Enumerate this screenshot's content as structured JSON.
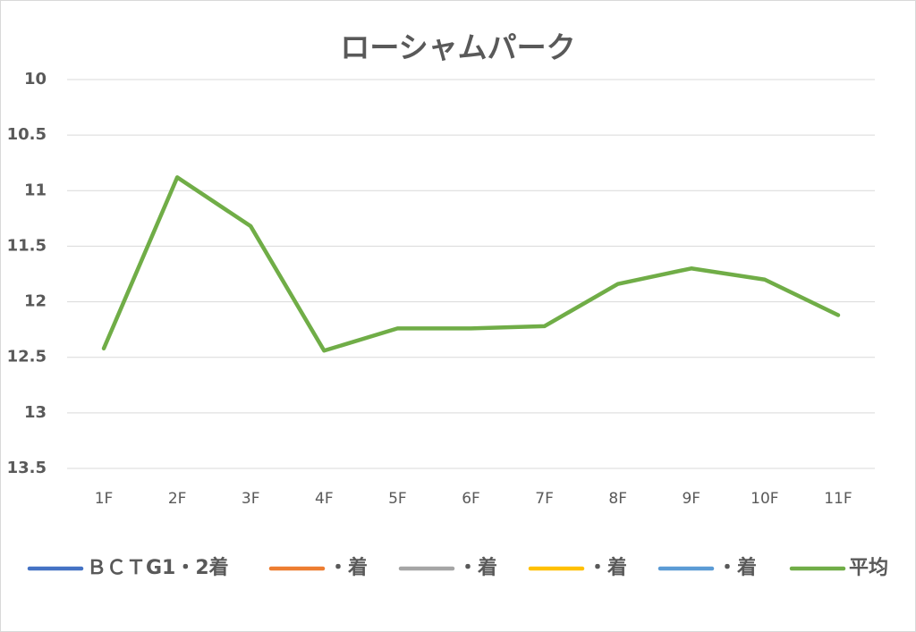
{
  "chart_data": {
    "type": "line",
    "title": "ローシャムパーク",
    "categories": [
      "1F",
      "2F",
      "3F",
      "4F",
      "5F",
      "6F",
      "7F",
      "8F",
      "9F",
      "10F",
      "11F"
    ],
    "series": [
      {
        "name": "ＢＣＴG1・2着",
        "color": "#4472c4",
        "values": [
          null,
          null,
          null,
          null,
          null,
          null,
          null,
          null,
          null,
          null,
          null
        ]
      },
      {
        "name": "・着",
        "color": "#ed7d31",
        "values": [
          null,
          null,
          null,
          null,
          null,
          null,
          null,
          null,
          null,
          null,
          null
        ]
      },
      {
        "name": "・着",
        "color": "#a5a5a5",
        "values": [
          null,
          null,
          null,
          null,
          null,
          null,
          null,
          null,
          null,
          null,
          null
        ]
      },
      {
        "name": "・着",
        "color": "#ffc000",
        "values": [
          null,
          null,
          null,
          null,
          null,
          null,
          null,
          null,
          null,
          null,
          null
        ]
      },
      {
        "name": "・着",
        "color": "#5b9bd5",
        "values": [
          null,
          null,
          null,
          null,
          null,
          null,
          null,
          null,
          null,
          null,
          null
        ]
      },
      {
        "name": "平均",
        "color": "#70ad47",
        "values": [
          12.42,
          10.88,
          11.32,
          12.44,
          12.24,
          12.24,
          12.22,
          11.84,
          11.7,
          11.8,
          12.12
        ]
      }
    ],
    "ylim": [
      10,
      13.5
    ],
    "yreverse": true,
    "yticks": [
      10,
      10.5,
      11,
      11.5,
      12,
      12.5,
      13,
      13.5
    ],
    "grid": true,
    "legend": "bottom"
  }
}
